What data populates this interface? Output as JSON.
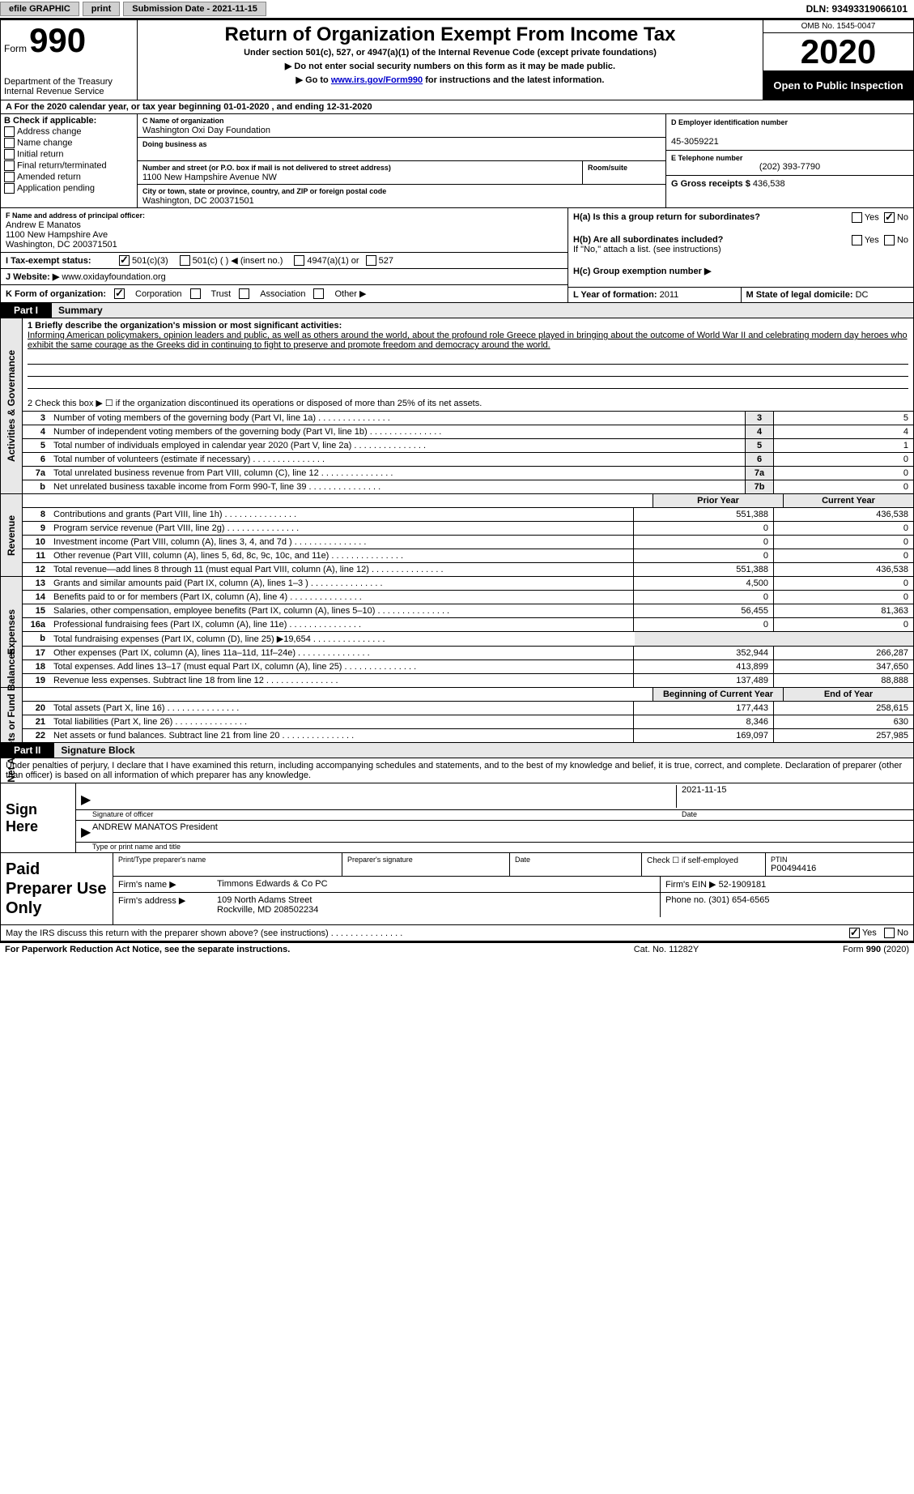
{
  "topbar": {
    "efile": "efile GRAPHIC",
    "print": "print",
    "sub_date": "Submission Date - 2021-11-15",
    "dln": "DLN: 93493319066101"
  },
  "header": {
    "form_prefix": "Form",
    "form_number": "990",
    "dept": "Department of the Treasury",
    "irs": "Internal Revenue Service",
    "title": "Return of Organization Exempt From Income Tax",
    "sub": "Under section 501(c), 527, or 4947(a)(1) of the Internal Revenue Code (except private foundations)",
    "instr1": "▶ Do not enter social security numbers on this form as it may be made public.",
    "instr2_pre": "▶ Go to ",
    "instr2_link": "www.irs.gov/Form990",
    "instr2_post": " for instructions and the latest information.",
    "omb": "OMB No. 1545-0047",
    "year": "2020",
    "opi": "Open to Public Inspection"
  },
  "rowA": {
    "text": "A  For the 2020 calendar year, or tax year beginning 01-01-2020   , and ending 12-31-2020"
  },
  "colB": {
    "label": "B Check if applicable:",
    "items": [
      "Address change",
      "Name change",
      "Initial return",
      "Final return/terminated",
      "Amended return",
      "Application pending"
    ]
  },
  "colC": {
    "name_label": "C Name of organization",
    "name": "Washington Oxi Day Foundation",
    "dba_label": "Doing business as",
    "dba": "",
    "addr_label": "Number and street (or P.O. box if mail is not delivered to street address)",
    "suite_label": "Room/suite",
    "addr": "1100 New Hampshire Avenue NW",
    "city_label": "City or town, state or province, country, and ZIP or foreign postal code",
    "city": "Washington, DC  200371501"
  },
  "colD": {
    "ein_label": "D Employer identification number",
    "ein": "45-3059221",
    "phone_label": "E Telephone number",
    "phone": "(202) 393-7790",
    "gross_label": "G Gross receipts $",
    "gross": "436,538"
  },
  "colF": {
    "label": "F Name and address of principal officer:",
    "name": "Andrew E Manatos",
    "addr1": "1100 New Hampshire Ave",
    "addr2": "Washington, DC  200371501"
  },
  "rowI": {
    "label": "I   Tax-exempt status:",
    "opts": [
      "501(c)(3)",
      "501(c) (  ) ◀ (insert no.)",
      "4947(a)(1) or",
      "527"
    ]
  },
  "rowJ": {
    "label": "J   Website: ▶",
    "val": "www.oxidayfoundation.org"
  },
  "rowK": {
    "label": "K Form of organization:",
    "opts": [
      "Corporation",
      "Trust",
      "Association",
      "Other ▶"
    ]
  },
  "colH": {
    "ha": "H(a)  Is this a group return for subordinates?",
    "hb": "H(b)  Are all subordinates included?",
    "hb_note": "If \"No,\" attach a list. (see instructions)",
    "hc": "H(c)  Group exemption number ▶",
    "yes": "Yes",
    "no": "No"
  },
  "rowL": {
    "label": "L Year of formation:",
    "val": "2011"
  },
  "rowM": {
    "label": "M State of legal domicile:",
    "val": "DC"
  },
  "part1": {
    "label": "Part I",
    "title": "Summary",
    "vtab_gov": "Activities & Governance",
    "vtab_rev": "Revenue",
    "vtab_exp": "Expenses",
    "vtab_net": "Net Assets or Fund Balances",
    "line1_label": "1  Briefly describe the organization's mission or most significant activities:",
    "line1_text": "Informing American policymakers, opinion leaders and public, as well as others around the world, about the profound role Greece played in bringing about the outcome of World War II and celebrating modern day heroes who exhibit the same courage as the Greeks did in continuing to fight to preserve and promote freedom and democracy around the world.",
    "line2": "2   Check this box ▶ ☐ if the organization discontinued its operations or disposed of more than 25% of its net assets.",
    "gov_rows": [
      {
        "n": "3",
        "d": "Number of voting members of the governing body (Part VI, line 1a)",
        "box": "3",
        "v": "5"
      },
      {
        "n": "4",
        "d": "Number of independent voting members of the governing body (Part VI, line 1b)",
        "box": "4",
        "v": "4"
      },
      {
        "n": "5",
        "d": "Total number of individuals employed in calendar year 2020 (Part V, line 2a)",
        "box": "5",
        "v": "1"
      },
      {
        "n": "6",
        "d": "Total number of volunteers (estimate if necessary)",
        "box": "6",
        "v": "0"
      },
      {
        "n": "7a",
        "d": "Total unrelated business revenue from Part VIII, column (C), line 12",
        "box": "7a",
        "v": "0"
      },
      {
        "n": "b",
        "d": "Net unrelated business taxable income from Form 990-T, line 39",
        "box": "7b",
        "v": "0"
      }
    ],
    "col_prior": "Prior Year",
    "col_current": "Current Year",
    "rev_rows": [
      {
        "n": "8",
        "d": "Contributions and grants (Part VIII, line 1h)",
        "v1": "551,388",
        "v2": "436,538"
      },
      {
        "n": "9",
        "d": "Program service revenue (Part VIII, line 2g)",
        "v1": "0",
        "v2": "0"
      },
      {
        "n": "10",
        "d": "Investment income (Part VIII, column (A), lines 3, 4, and 7d )",
        "v1": "0",
        "v2": "0"
      },
      {
        "n": "11",
        "d": "Other revenue (Part VIII, column (A), lines 5, 6d, 8c, 9c, 10c, and 11e)",
        "v1": "0",
        "v2": "0"
      },
      {
        "n": "12",
        "d": "Total revenue—add lines 8 through 11 (must equal Part VIII, column (A), line 12)",
        "v1": "551,388",
        "v2": "436,538"
      }
    ],
    "exp_rows": [
      {
        "n": "13",
        "d": "Grants and similar amounts paid (Part IX, column (A), lines 1–3 )",
        "v1": "4,500",
        "v2": "0"
      },
      {
        "n": "14",
        "d": "Benefits paid to or for members (Part IX, column (A), line 4)",
        "v1": "0",
        "v2": "0"
      },
      {
        "n": "15",
        "d": "Salaries, other compensation, employee benefits (Part IX, column (A), lines 5–10)",
        "v1": "56,455",
        "v2": "81,363"
      },
      {
        "n": "16a",
        "d": "Professional fundraising fees (Part IX, column (A), line 11e)",
        "v1": "0",
        "v2": "0"
      },
      {
        "n": "b",
        "d": "Total fundraising expenses (Part IX, column (D), line 25) ▶19,654",
        "v1": "",
        "v2": "",
        "blank": true
      },
      {
        "n": "17",
        "d": "Other expenses (Part IX, column (A), lines 11a–11d, 11f–24e)",
        "v1": "352,944",
        "v2": "266,287"
      },
      {
        "n": "18",
        "d": "Total expenses. Add lines 13–17 (must equal Part IX, column (A), line 25)",
        "v1": "413,899",
        "v2": "347,650"
      },
      {
        "n": "19",
        "d": "Revenue less expenses. Subtract line 18 from line 12",
        "v1": "137,489",
        "v2": "88,888"
      }
    ],
    "col_begin": "Beginning of Current Year",
    "col_end": "End of Year",
    "net_rows": [
      {
        "n": "20",
        "d": "Total assets (Part X, line 16)",
        "v1": "177,443",
        "v2": "258,615"
      },
      {
        "n": "21",
        "d": "Total liabilities (Part X, line 26)",
        "v1": "8,346",
        "v2": "630"
      },
      {
        "n": "22",
        "d": "Net assets or fund balances. Subtract line 21 from line 20",
        "v1": "169,097",
        "v2": "257,985"
      }
    ]
  },
  "part2": {
    "label": "Part II",
    "title": "Signature Block",
    "decl": "Under penalties of perjury, I declare that I have examined this return, including accompanying schedules and statements, and to the best of my knowledge and belief, it is true, correct, and complete. Declaration of preparer (other than officer) is based on all information of which preparer has any knowledge.",
    "sign_here": "Sign Here",
    "sig_officer_label": "Signature of officer",
    "sig_date": "2021-11-15",
    "sig_date_label": "Date",
    "officer_name": "ANDREW MANATOS President",
    "officer_name_label": "Type or print name and title",
    "paid_label": "Paid Preparer Use Only",
    "prep_name_label": "Print/Type preparer's name",
    "prep_sig_label": "Preparer's signature",
    "prep_date_label": "Date",
    "self_emp_label": "Check ☐ if self-employed",
    "ptin_label": "PTIN",
    "ptin": "P00494416",
    "firm_name_label": "Firm's name   ▶",
    "firm_name": "Timmons Edwards & Co PC",
    "firm_ein_label": "Firm's EIN ▶",
    "firm_ein": "52-1909181",
    "firm_addr_label": "Firm's address ▶",
    "firm_addr1": "109 North Adams Street",
    "firm_addr2": "Rockville, MD  208502234",
    "firm_phone_label": "Phone no.",
    "firm_phone": "(301) 654-6565",
    "irs_discuss": "May the IRS discuss this return with the preparer shown above? (see instructions)",
    "yes": "Yes",
    "no": "No"
  },
  "footer": {
    "f1": "For Paperwork Reduction Act Notice, see the separate instructions.",
    "f2": "Cat. No. 11282Y",
    "f3": "Form 990 (2020)"
  }
}
